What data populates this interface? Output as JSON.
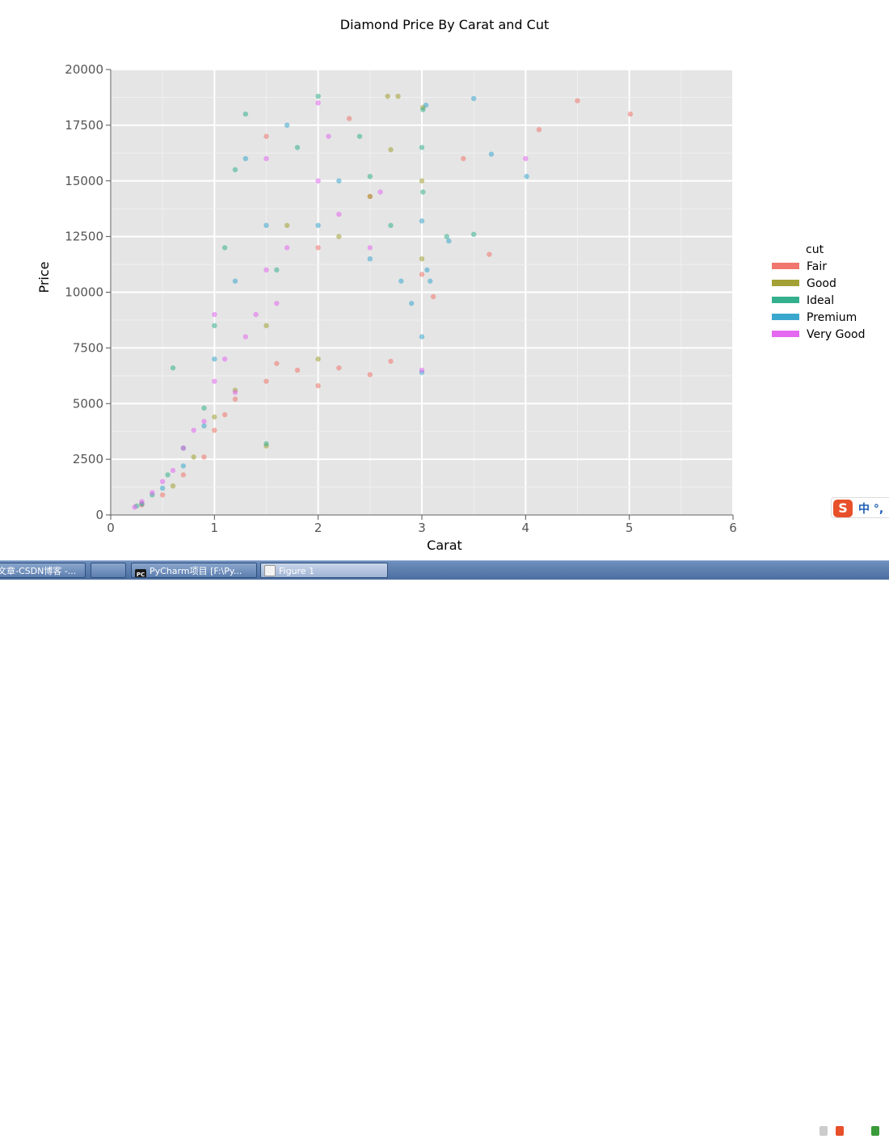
{
  "chart_data": {
    "type": "scatter",
    "title": "Diamond Price By Carat and Cut",
    "xlabel": "Carat",
    "ylabel": "Price",
    "xlim": [
      0,
      6
    ],
    "ylim": [
      0,
      20000
    ],
    "xticks": [
      "0",
      "1",
      "2",
      "3",
      "4",
      "5",
      "6"
    ],
    "yticks": [
      "0",
      "2500",
      "5000",
      "7500",
      "10000",
      "12500",
      "15000",
      "17500",
      "20000"
    ],
    "grid": true,
    "legend_position": "right",
    "legend_title": "cut",
    "series": [
      {
        "name": "Fair",
        "color": "#f1766d",
        "points": [
          [
            0.3,
            450
          ],
          [
            0.5,
            900
          ],
          [
            0.7,
            1800
          ],
          [
            0.9,
            2600
          ],
          [
            1.0,
            3800
          ],
          [
            1.1,
            4500
          ],
          [
            1.2,
            5200
          ],
          [
            1.5,
            6000
          ],
          [
            1.6,
            6800
          ],
          [
            1.8,
            6500
          ],
          [
            2.0,
            5800
          ],
          [
            2.2,
            6600
          ],
          [
            2.5,
            6300
          ],
          [
            2.7,
            6900
          ],
          [
            2.0,
            12000
          ],
          [
            2.5,
            14300
          ],
          [
            3.0,
            10800
          ],
          [
            3.11,
            9800
          ],
          [
            3.4,
            16000
          ],
          [
            3.65,
            11700
          ],
          [
            4.13,
            17300
          ],
          [
            4.5,
            18600
          ],
          [
            5.01,
            18000
          ],
          [
            2.3,
            17800
          ],
          [
            1.5,
            17000
          ]
        ]
      },
      {
        "name": "Good",
        "color": "#a3a135",
        "points": [
          [
            0.3,
            500
          ],
          [
            0.6,
            1300
          ],
          [
            0.8,
            2600
          ],
          [
            1.0,
            4400
          ],
          [
            1.2,
            5600
          ],
          [
            1.5,
            3100
          ],
          [
            1.5,
            8500
          ],
          [
            2.0,
            7000
          ],
          [
            2.2,
            12500
          ],
          [
            2.5,
            14300
          ],
          [
            2.67,
            18800
          ],
          [
            2.77,
            18800
          ],
          [
            3.0,
            11500
          ],
          [
            3.0,
            15000
          ],
          [
            3.01,
            18300
          ],
          [
            2.7,
            16400
          ],
          [
            1.7,
            13000
          ]
        ]
      },
      {
        "name": "Ideal",
        "color": "#35b08e",
        "points": [
          [
            0.25,
            400
          ],
          [
            0.4,
            900
          ],
          [
            0.55,
            1800
          ],
          [
            0.6,
            6600
          ],
          [
            0.7,
            3000
          ],
          [
            0.9,
            4800
          ],
          [
            1.0,
            8500
          ],
          [
            1.1,
            12000
          ],
          [
            1.2,
            15500
          ],
          [
            1.3,
            18000
          ],
          [
            1.5,
            3200
          ],
          [
            1.6,
            11000
          ],
          [
            1.8,
            16500
          ],
          [
            2.0,
            18800
          ],
          [
            2.4,
            17000
          ],
          [
            2.5,
            15200
          ],
          [
            2.7,
            13000
          ],
          [
            3.01,
            14500
          ],
          [
            3.01,
            18200
          ],
          [
            3.24,
            12500
          ],
          [
            3.5,
            12600
          ],
          [
            3.0,
            16500
          ]
        ]
      },
      {
        "name": "Premium",
        "color": "#3aa7cd",
        "points": [
          [
            0.3,
            500
          ],
          [
            0.5,
            1200
          ],
          [
            0.7,
            2200
          ],
          [
            0.9,
            4000
          ],
          [
            1.0,
            7000
          ],
          [
            1.2,
            10500
          ],
          [
            1.3,
            16000
          ],
          [
            1.5,
            13000
          ],
          [
            1.7,
            17500
          ],
          [
            2.0,
            13000
          ],
          [
            2.2,
            15000
          ],
          [
            2.5,
            11500
          ],
          [
            2.8,
            10500
          ],
          [
            2.9,
            9500
          ],
          [
            3.0,
            6400
          ],
          [
            3.0,
            8000
          ],
          [
            3.0,
            13200
          ],
          [
            3.05,
            11000
          ],
          [
            3.08,
            10500
          ],
          [
            3.5,
            18700
          ],
          [
            3.67,
            16200
          ],
          [
            4.01,
            15200
          ],
          [
            3.04,
            18400
          ],
          [
            3.26,
            12300
          ]
        ]
      },
      {
        "name": "Very Good",
        "color": "#e468f0",
        "points": [
          [
            0.23,
            350
          ],
          [
            0.3,
            600
          ],
          [
            0.4,
            1000
          ],
          [
            0.5,
            1500
          ],
          [
            0.6,
            2000
          ],
          [
            0.7,
            3000
          ],
          [
            0.8,
            3800
          ],
          [
            0.9,
            4200
          ],
          [
            1.0,
            6000
          ],
          [
            1.0,
            9000
          ],
          [
            1.1,
            7000
          ],
          [
            1.2,
            5500
          ],
          [
            1.3,
            8000
          ],
          [
            1.4,
            9000
          ],
          [
            1.5,
            11000
          ],
          [
            1.5,
            16000
          ],
          [
            1.6,
            9500
          ],
          [
            1.7,
            12000
          ],
          [
            2.0,
            15000
          ],
          [
            2.0,
            18500
          ],
          [
            2.1,
            17000
          ],
          [
            2.2,
            13500
          ],
          [
            2.5,
            12000
          ],
          [
            2.6,
            14500
          ],
          [
            3.0,
            6500
          ],
          [
            4.0,
            16000
          ]
        ]
      }
    ]
  }
}
